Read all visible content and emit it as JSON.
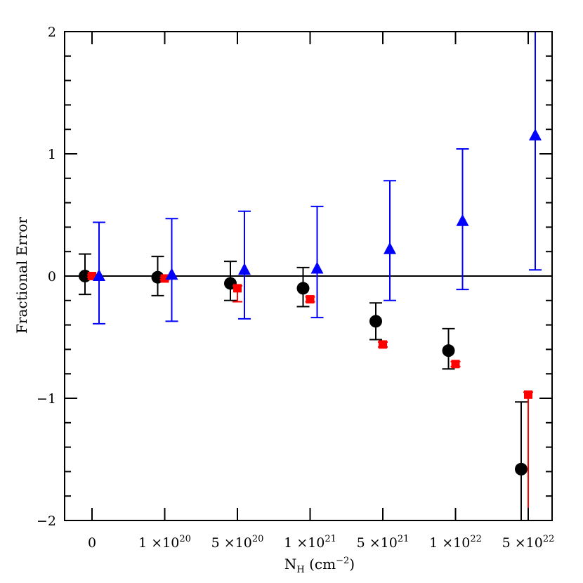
{
  "chart_data": {
    "type": "scatter",
    "xlabel": {
      "main": "N",
      "sub": "H",
      "unit_pre": " (cm",
      "unit_sup": "−2",
      "unit_post": ")"
    },
    "ylabel": "Fractional Error",
    "ylim": [
      -2,
      2
    ],
    "yticks": [
      -2,
      -1,
      0,
      1,
      2
    ],
    "ytick_labels": [
      "−2",
      "−1",
      "0",
      "1",
      "2"
    ],
    "categories": [
      {
        "base": "0",
        "exp": ""
      },
      {
        "base": "1 ×10",
        "exp": "20"
      },
      {
        "base": "5 ×10",
        "exp": "20"
      },
      {
        "base": "1 ×10",
        "exp": "21"
      },
      {
        "base": "5 ×10",
        "exp": "21"
      },
      {
        "base": "1 ×10",
        "exp": "22"
      },
      {
        "base": "5 ×10",
        "exp": "22"
      }
    ],
    "reference_line": 0,
    "series": [
      {
        "marker": "circle",
        "color": "#000000",
        "values": [
          0.0,
          -0.01,
          -0.06,
          -0.1,
          -0.37,
          -0.61,
          -1.58
        ],
        "err_low": [
          -0.15,
          -0.16,
          -0.2,
          -0.25,
          -0.52,
          -0.76,
          -2.0
        ],
        "err_high": [
          0.18,
          0.16,
          0.12,
          0.07,
          -0.22,
          -0.43,
          -1.03
        ]
      },
      {
        "marker": "square",
        "color": "#ff0000",
        "values": [
          0.0,
          -0.02,
          -0.1,
          -0.19,
          -0.56,
          -0.72,
          -0.97
        ],
        "err_low": [
          -0.01,
          -0.03,
          -0.21,
          -0.21,
          -0.58,
          -0.74,
          -2.0
        ],
        "err_high": [
          0.01,
          -0.01,
          -0.08,
          -0.17,
          -0.54,
          -0.7,
          -0.95
        ]
      },
      {
        "marker": "triangle",
        "color": "#0000ff",
        "values": [
          0.0,
          0.01,
          0.05,
          0.06,
          0.22,
          0.45,
          1.15
        ],
        "err_low": [
          -0.39,
          -0.37,
          -0.35,
          -0.34,
          -0.2,
          -0.11,
          0.05
        ],
        "err_high": [
          0.44,
          0.47,
          0.53,
          0.57,
          0.78,
          1.04,
          2.0
        ]
      }
    ]
  }
}
